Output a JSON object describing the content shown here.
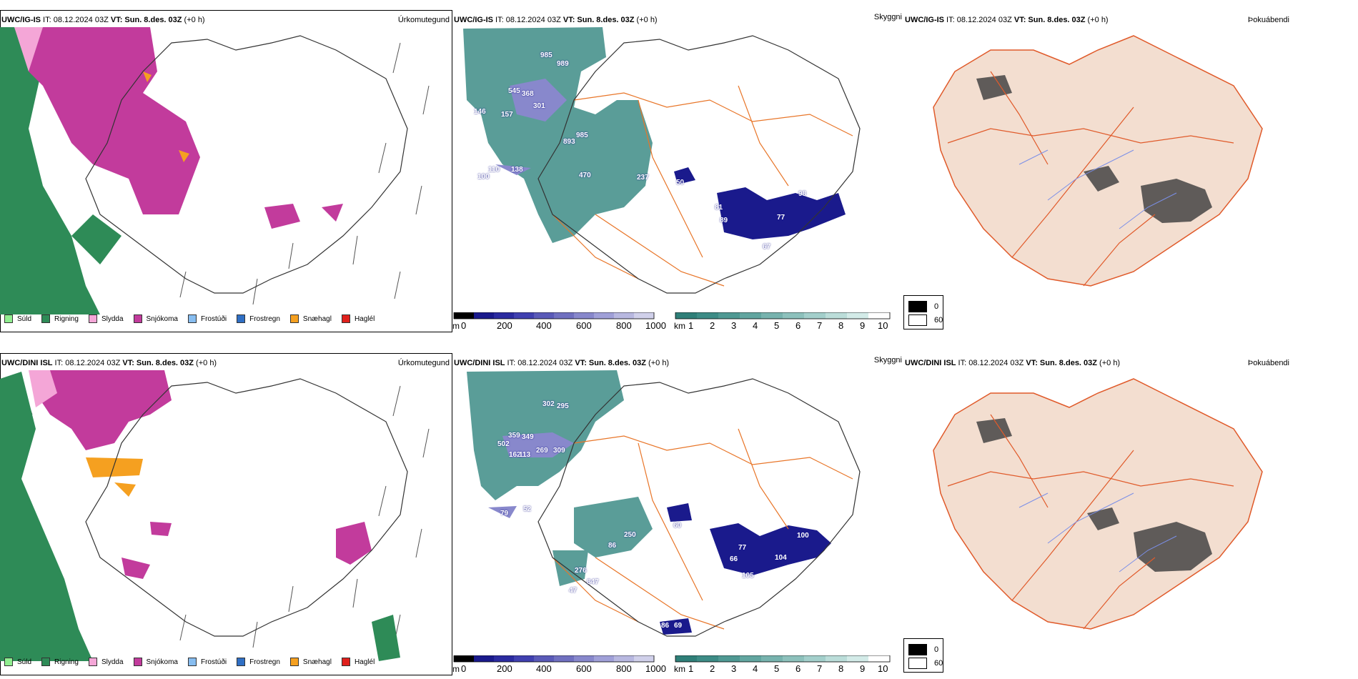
{
  "rows": [
    {
      "precip_title": {
        "model": "UWC/IG-IS",
        "it": " IT: 08.12.2024 03Z ",
        "vt_label": "VT:",
        "vt": " Sun. 8.des. 03Z",
        "lead": " (+0 h)",
        "right": "Úrkomutegund"
      },
      "ceil_title": {
        "model": "UWC/IG-IS",
        "it": " IT: 08.12.2024 03Z ",
        "vt_label": "VT:",
        "vt": " Sun. 8.des. 03Z",
        "lead": " (+0 h)",
        "right": "Skyggni"
      },
      "cloud_title": {
        "model": "UWC/IG-IS",
        "it": " IT: 08.12.2024 03Z ",
        "vt_label": "VT:",
        "vt": " Sun. 8.des. 03Z",
        "lead": " (+0 h)",
        "right": "Þokuábendi"
      },
      "ceiling_numbers": [
        "985",
        "989",
        "545",
        "368",
        "301",
        "146",
        "157",
        "893",
        "985",
        "110",
        "138",
        "100",
        "470",
        "237",
        "50",
        "81",
        "89",
        "77",
        "98",
        "67"
      ]
    },
    {
      "precip_title": {
        "model": "UWC/DINI ISL",
        "it": " IT: 08.12.2024 03Z ",
        "vt_label": "VT:",
        "vt": " Sun. 8.des. 03Z",
        "lead": " (+0 h)",
        "right": "Úrkomutegund"
      },
      "ceil_title": {
        "model": "UWC/DINI ISL",
        "it": " IT: 08.12.2024 03Z ",
        "vt_label": "VT:",
        "vt": " Sun. 8.des. 03Z",
        "lead": " (+0 h)",
        "right": "Skyggni"
      },
      "cloud_title": {
        "model": "UWC/DINI ISL",
        "it": " IT: 08.12.2024 03Z ",
        "vt_label": "VT:",
        "vt": " Sun. 8.des. 03Z",
        "lead": " (+0 h)",
        "right": "Þokuábendi"
      },
      "ceiling_numbers": [
        "302",
        "295",
        "359",
        "349",
        "502",
        "162",
        "113",
        "269",
        "309",
        "79",
        "52",
        "60",
        "250",
        "86",
        "77",
        "66",
        "105",
        "104",
        "100",
        "276",
        "847",
        "47",
        "86",
        "69"
      ]
    }
  ],
  "precip_legend": [
    {
      "label": "Súld",
      "color": "#90ee90"
    },
    {
      "label": "Rigning",
      "color": "#2e8b57"
    },
    {
      "label": "Slydda",
      "color": "#f4a6d7"
    },
    {
      "label": "Snjókoma",
      "color": "#c23b9c"
    },
    {
      "label": "Frostúði",
      "color": "#87bdf0"
    },
    {
      "label": "Frostregn",
      "color": "#2f6fc4"
    },
    {
      "label": "Snæhagl",
      "color": "#f5a020"
    },
    {
      "label": "Haglél",
      "color": "#e0201c"
    }
  ],
  "ceiling_bar": {
    "unit": "m",
    "ticks": [
      "0",
      "200",
      "400",
      "600",
      "800",
      "1000"
    ],
    "colors": [
      "#000000",
      "#1a1a8c",
      "#2b2ba0",
      "#4040b0",
      "#5a5ab8",
      "#7070c0",
      "#8888cc",
      "#a0a0d8",
      "#b8b8e0",
      "#d0d0ea"
    ]
  },
  "vis_bar": {
    "unit": "km",
    "ticks": [
      "1",
      "2",
      "3",
      "4",
      "5",
      "6",
      "7",
      "8",
      "9",
      "10"
    ],
    "colors": [
      "#2f7f78",
      "#3d8c86",
      "#4f9993",
      "#62a6a0",
      "#77b3ae",
      "#8dc1bc",
      "#a3cfcb",
      "#bbddd9",
      "#d3ebe8",
      "#ffffff"
    ]
  },
  "fog_legend": [
    {
      "label": "0",
      "color": "#000000"
    },
    {
      "label": "60",
      "color": "#ffffff"
    }
  ],
  "colors": {
    "land_fill": "#f3ded0",
    "road": "#e87528",
    "river": "#7b8fe8",
    "coast": "#333333"
  }
}
